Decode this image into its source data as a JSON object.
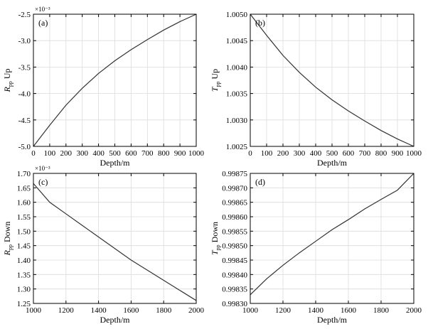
{
  "colors": {
    "line": "#333333",
    "grid": "#dcdcdc",
    "axis": "#000000",
    "background": "#ffffff"
  },
  "chart_data": [
    {
      "type": "line",
      "panel_label": "(a)",
      "xlabel": "Depth/m",
      "ylabel_main": "R",
      "ylabel_sub": "pp",
      "ylabel_tail": " Up",
      "multiplier": "×10⁻³",
      "xlim": [
        0,
        1000
      ],
      "ylim": [
        -5.0,
        -2.5
      ],
      "xticks": [
        0,
        100,
        200,
        300,
        400,
        500,
        600,
        700,
        800,
        900,
        1000
      ],
      "xtick_labels": [
        "0",
        "100",
        "200",
        "300",
        "400",
        "500",
        "600",
        "700",
        "800",
        "900",
        "1000"
      ],
      "yticks": [
        -5.0,
        -4.5,
        -4.0,
        -3.5,
        -3.0,
        -2.5
      ],
      "ytick_labels": [
        "-5.0",
        "-4.5",
        "-4.0",
        "-3.5",
        "-3.0",
        "-2.5"
      ],
      "grid": true,
      "series": [
        {
          "x": [
            0,
            100,
            200,
            300,
            400,
            500,
            600,
            700,
            800,
            900,
            1000
          ],
          "y": [
            -5.0,
            -4.6,
            -4.22,
            -3.9,
            -3.62,
            -3.38,
            -3.17,
            -2.98,
            -2.8,
            -2.64,
            -2.5
          ]
        }
      ]
    },
    {
      "type": "line",
      "panel_label": "(b)",
      "xlabel": "Depth/m",
      "ylabel_main": "T",
      "ylabel_sub": "pp",
      "ylabel_tail": " Up",
      "multiplier": "",
      "xlim": [
        0,
        1000
      ],
      "ylim": [
        1.0025,
        1.005
      ],
      "xticks": [
        0,
        100,
        200,
        300,
        400,
        500,
        600,
        700,
        800,
        900,
        1000
      ],
      "xtick_labels": [
        "0",
        "100",
        "200",
        "300",
        "400",
        "500",
        "600",
        "700",
        "800",
        "900",
        "1000"
      ],
      "yticks": [
        1.0025,
        1.003,
        1.0035,
        1.004,
        1.0045,
        1.005
      ],
      "ytick_labels": [
        "1.0025",
        "1.0030",
        "1.0035",
        "1.0040",
        "1.0045",
        "1.0050"
      ],
      "grid": true,
      "series": [
        {
          "x": [
            0,
            100,
            200,
            300,
            400,
            500,
            600,
            700,
            800,
            900,
            1000
          ],
          "y": [
            1.005,
            1.0046,
            1.00422,
            1.0039,
            1.00362,
            1.00338,
            1.00317,
            1.00298,
            1.0028,
            1.00264,
            1.0025
          ]
        }
      ]
    },
    {
      "type": "line",
      "panel_label": "(c)",
      "xlabel": "Depth/m",
      "ylabel_main": "R",
      "ylabel_sub": "pp",
      "ylabel_tail": " Down",
      "multiplier": "×10⁻³",
      "xlim": [
        1000,
        2000
      ],
      "ylim": [
        1.25,
        1.7
      ],
      "xticks": [
        1000,
        1200,
        1400,
        1600,
        1800,
        2000
      ],
      "xtick_labels": [
        "1000",
        "1200",
        "1400",
        "1600",
        "1800",
        "2000"
      ],
      "yticks": [
        1.25,
        1.3,
        1.35,
        1.4,
        1.45,
        1.5,
        1.55,
        1.6,
        1.65,
        1.7
      ],
      "ytick_labels": [
        "1.25",
        "1.30",
        "1.35",
        "1.40",
        "1.45",
        "1.50",
        "1.55",
        "1.60",
        "1.65",
        "1.70"
      ],
      "grid": true,
      "series": [
        {
          "x": [
            1000,
            1100,
            1200,
            1300,
            1400,
            1500,
            1600,
            1700,
            1800,
            1900,
            2000
          ],
          "y": [
            1.665,
            1.6,
            1.56,
            1.52,
            1.48,
            1.44,
            1.4,
            1.365,
            1.33,
            1.295,
            1.26
          ]
        }
      ]
    },
    {
      "type": "line",
      "panel_label": "(d)",
      "xlabel": "Depth/m",
      "ylabel_main": "T",
      "ylabel_sub": "pp",
      "ylabel_tail": " Down",
      "multiplier": "",
      "xlim": [
        1000,
        2000
      ],
      "ylim": [
        0.9983,
        0.99875
      ],
      "xticks": [
        1000,
        1200,
        1400,
        1600,
        1800,
        2000
      ],
      "xtick_labels": [
        "1000",
        "1200",
        "1400",
        "1600",
        "1800",
        "2000"
      ],
      "yticks": [
        0.9983,
        0.99835,
        0.9984,
        0.99845,
        0.9985,
        0.99855,
        0.9986,
        0.99865,
        0.9987,
        0.99875
      ],
      "ytick_labels": [
        "0.99830",
        "0.99835",
        "0.99840",
        "0.99845",
        "0.99850",
        "0.99855",
        "0.99860",
        "0.99865",
        "0.99870",
        "0.99875"
      ],
      "grid": true,
      "series": [
        {
          "x": [
            1000,
            1100,
            1200,
            1300,
            1400,
            1500,
            1600,
            1700,
            1800,
            1900,
            2000
          ],
          "y": [
            0.99833,
            0.998385,
            0.998432,
            0.998475,
            0.998515,
            0.998555,
            0.99859,
            0.998627,
            0.99866,
            0.998692,
            0.99875
          ]
        }
      ]
    }
  ]
}
